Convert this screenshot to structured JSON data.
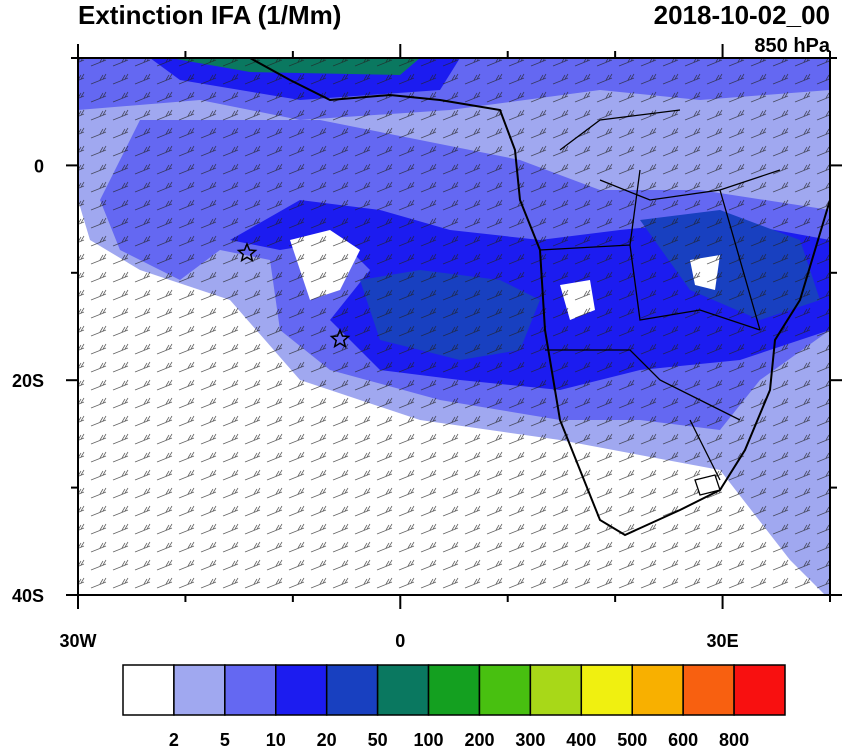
{
  "header": {
    "title": "Extinction IFA (1/Mm)",
    "date": "2018-10-02_00",
    "level": "850 hPa"
  },
  "map": {
    "lon_range": [
      -30,
      40
    ],
    "lat_range": [
      -40,
      10
    ],
    "lon_ticks": [
      {
        "value": -30,
        "label": "30W"
      },
      0,
      {
        "value": 30,
        "label": "30E"
      }
    ],
    "lat_ticks": [
      0,
      {
        "value": -20,
        "label": "20S"
      },
      {
        "value": -40,
        "label": "40S"
      }
    ],
    "lon_minor_ticks": [
      -20,
      -10,
      10,
      20,
      40
    ],
    "lat_minor_ticks": [
      10,
      -10,
      -30
    ]
  },
  "colorbar": {
    "colors": [
      "#ffffff",
      "#a0a8f0",
      "#6468f2",
      "#1c1cf0",
      "#1840c0",
      "#0a7860",
      "#14a020",
      "#48c010",
      "#a8d818",
      "#f0f010",
      "#f8b000",
      "#f86010",
      "#f81010"
    ],
    "labels": [
      2,
      5,
      10,
      20,
      50,
      100,
      200,
      300,
      400,
      500,
      600,
      800
    ]
  }
}
